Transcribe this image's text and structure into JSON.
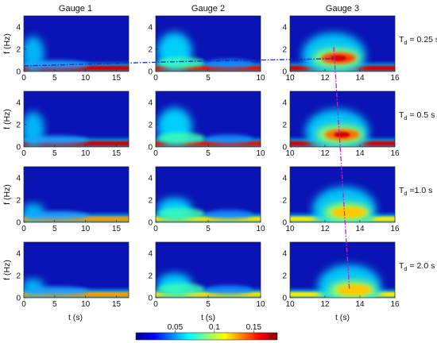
{
  "chart_data": {
    "type": "heatmap",
    "colormap": "jet",
    "columns": [
      {
        "title": "Gauge 1",
        "xlim": [
          0,
          17
        ],
        "xticks": [
          0,
          5,
          10,
          15
        ],
        "xlabel": "t (s)"
      },
      {
        "title": "Gauge 2",
        "xlim": [
          0,
          10
        ],
        "xticks": [
          0,
          5,
          10
        ],
        "xlabel": "t (s)"
      },
      {
        "title": "Gauge 3",
        "xlim": [
          10,
          16
        ],
        "xticks": [
          10,
          12,
          14,
          16
        ],
        "xlabel": "t (s)"
      }
    ],
    "ylabel": "f (Hz)",
    "ylim": [
      0,
      5
    ],
    "yticks": [
      0,
      2,
      4
    ],
    "rows": [
      {
        "label_main": "T",
        "label_sub": "d",
        "label_rest": " = 0.25 s",
        "ridge_freq": 1.2,
        "ridge_t_gauge3": 12.5
      },
      {
        "label_main": "T",
        "label_sub": "d",
        "label_rest": " = 0.5 s",
        "ridge_freq": 1.1,
        "ridge_t_gauge3": 12.7
      },
      {
        "label_main": "T",
        "label_sub": "d",
        "label_rest": " =1.0 s",
        "ridge_freq": 0.9,
        "ridge_t_gauge3": 13.1
      },
      {
        "label_main": "T",
        "label_sub": "d",
        "label_rest": " = 2.0 s",
        "ridge_freq": 0.7,
        "ridge_t_gauge3": 13.4
      }
    ],
    "colorbar": {
      "range": [
        0,
        0.18
      ],
      "ticks": [
        0.05,
        0.1,
        0.15
      ],
      "tick_labels": [
        "0.05",
        "0.1",
        "0.15"
      ]
    },
    "annotations": [
      {
        "type": "dash-dot line",
        "color": "#1a28c8",
        "meaning": "peak frequency track across gauges (T_d = 0.25 s)",
        "points": [
          [
            0,
            0.5
          ],
          [
            17,
            0.9
          ],
          [
            12.5,
            1.15
          ]
        ]
      },
      {
        "type": "dash-dot line",
        "color": "#c81ec8",
        "meaning": "arrival time of spectral peak at Gauge 3 across rows",
        "points_t": [
          12.5,
          13.4
        ]
      }
    ],
    "colors": {
      "blue_line": "#1a28c8",
      "magenta_line": "#c81ec8"
    }
  }
}
